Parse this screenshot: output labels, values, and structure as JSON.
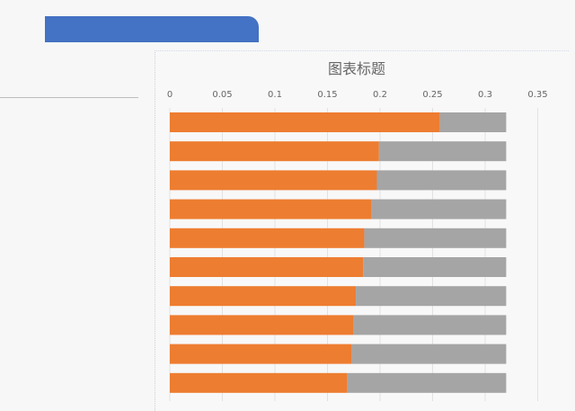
{
  "colors": {
    "tab": "#4472c4",
    "series1": "#ed7d31",
    "series2": "#a5a5a5"
  },
  "chart_data": {
    "type": "bar",
    "orientation": "horizontal",
    "stacked": true,
    "title": "图表标题",
    "xaxis_position": "top",
    "xlim": [
      0,
      0.35
    ],
    "xticks": [
      "0",
      "0.05",
      "0.1",
      "0.15",
      "0.2",
      "0.25",
      "0.3",
      "0.35"
    ],
    "grid": true,
    "categories": [
      "",
      "",
      "",
      "",
      "",
      "",
      "",
      "",
      "",
      ""
    ],
    "series": [
      {
        "values": [
          0.257,
          0.199,
          0.197,
          0.192,
          0.185,
          0.184,
          0.177,
          0.175,
          0.173,
          0.169
        ],
        "color": "#ed7d31"
      },
      {
        "values": [
          0.063,
          0.121,
          0.123,
          0.128,
          0.135,
          0.136,
          0.143,
          0.145,
          0.147,
          0.151
        ],
        "color": "#a5a5a5"
      }
    ]
  }
}
